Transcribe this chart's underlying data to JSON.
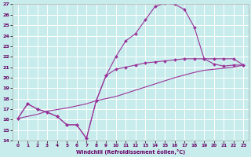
{
  "xlabel": "Windchill (Refroidissement éolien,°C)",
  "bg_color": "#c8ecec",
  "line_color": "#993399",
  "grid_color": "#ffffff",
  "xlim": [
    -0.5,
    23.5
  ],
  "ylim": [
    14,
    27
  ],
  "xticks": [
    0,
    1,
    2,
    3,
    4,
    5,
    6,
    7,
    8,
    9,
    10,
    11,
    12,
    13,
    14,
    15,
    16,
    17,
    18,
    19,
    20,
    21,
    22,
    23
  ],
  "yticks": [
    14,
    15,
    16,
    17,
    18,
    19,
    20,
    21,
    22,
    23,
    24,
    25,
    26,
    27
  ],
  "curve1_x": [
    0,
    1,
    2,
    3,
    4,
    5,
    6,
    7,
    8,
    9,
    10,
    11,
    12,
    13,
    14,
    15,
    16,
    17,
    18,
    19,
    20,
    21,
    22,
    23
  ],
  "curve1_y": [
    16.1,
    17.5,
    17.0,
    16.7,
    16.3,
    15.5,
    15.5,
    14.2,
    17.8,
    20.2,
    22.0,
    23.5,
    24.2,
    25.5,
    26.8,
    27.1,
    27.0,
    26.5,
    24.8,
    21.8,
    21.3,
    21.1,
    21.2,
    21.2
  ],
  "curve2_x": [
    0,
    1,
    2,
    3,
    4,
    5,
    6,
    7,
    8,
    9,
    10,
    11,
    12,
    13,
    14,
    15,
    16,
    17,
    18,
    19,
    20,
    21,
    22,
    23
  ],
  "curve2_y": [
    16.1,
    17.5,
    17.0,
    16.7,
    16.3,
    15.5,
    15.5,
    14.2,
    17.8,
    20.2,
    20.8,
    21.0,
    21.2,
    21.4,
    21.5,
    21.6,
    21.7,
    21.8,
    21.8,
    21.8,
    21.8,
    21.8,
    21.8,
    21.2
  ],
  "curve3_x": [
    0,
    1,
    2,
    3,
    5,
    6,
    7,
    8,
    10,
    12,
    14,
    16,
    18,
    19,
    20,
    21,
    22,
    23
  ],
  "curve3_y": [
    16.1,
    16.3,
    16.5,
    16.8,
    17.1,
    17.3,
    17.5,
    17.8,
    18.2,
    18.8,
    19.4,
    20.0,
    20.5,
    20.7,
    20.8,
    20.9,
    21.0,
    21.2
  ]
}
